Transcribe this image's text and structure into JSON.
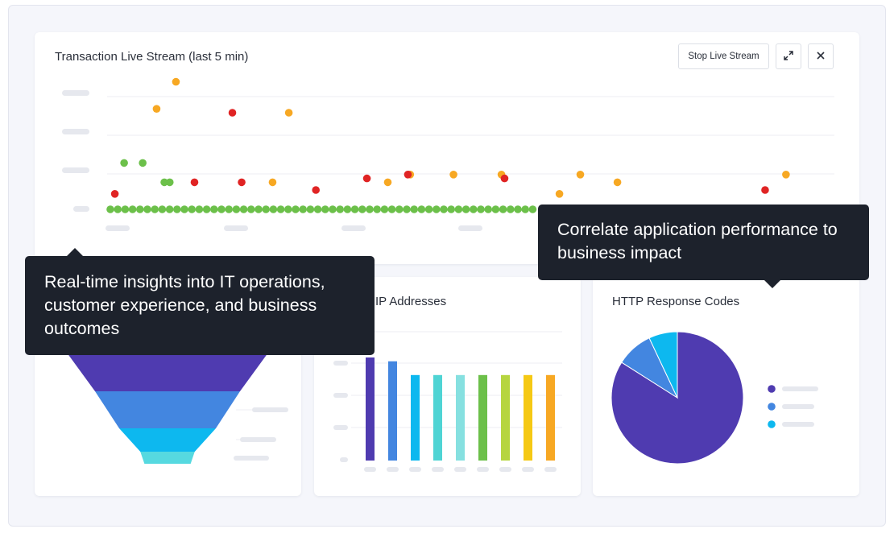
{
  "stream_card": {
    "title": "Transaction Live Stream (last 5 min)",
    "stop_label": "Stop Live Stream",
    "expand_icon": "expand-icon",
    "close_icon": "close-icon",
    "colors": {
      "ok": "#6cc04a",
      "warn": "#f7a823",
      "error": "#e02424"
    }
  },
  "ip_card": {
    "title": "IP Addresses"
  },
  "http_card": {
    "title": "HTTP Response Codes",
    "legend_colors": [
      "#4f3bb0",
      "#4386e0",
      "#0db8ef"
    ]
  },
  "tooltips": {
    "left": "Real-time insights into IT operations, customer experience, and business outcomes",
    "right": "Correlate application performance to business impact"
  },
  "chart_data": [
    {
      "type": "scatter",
      "title": "Transaction Live Stream (last 5 min)",
      "xlim": [
        0,
        100
      ],
      "ylim": [
        0,
        4
      ],
      "series": [
        {
          "color": "#6cc04a",
          "points": [
            [
              2.2,
              1.2
            ],
            [
              4.6,
              1.2
            ],
            [
              7.4,
              0.7
            ],
            [
              8.1,
              0.7
            ]
          ]
        },
        {
          "color": "#f7a823",
          "points": [
            [
              8.9,
              3.3
            ],
            [
              6.4,
              2.6
            ],
            [
              23.5,
              2.5
            ],
            [
              21.4,
              0.7
            ],
            [
              36.3,
              0.7
            ],
            [
              39.2,
              0.9
            ],
            [
              44.8,
              0.9
            ],
            [
              51.0,
              0.9
            ],
            [
              58.5,
              0.4
            ],
            [
              61.2,
              0.9
            ],
            [
              66.0,
              0.7
            ],
            [
              87.8,
              0.9
            ]
          ]
        },
        {
          "color": "#e02424",
          "points": [
            [
              1.0,
              0.4
            ],
            [
              16.2,
              2.5
            ],
            [
              11.3,
              0.7
            ],
            [
              17.4,
              0.7
            ],
            [
              27.0,
              0.5
            ],
            [
              33.6,
              0.8
            ],
            [
              38.9,
              0.9
            ],
            [
              51.4,
              0.8
            ],
            [
              85.1,
              0.5
            ]
          ]
        }
      ],
      "baseline": {
        "color": "#6cc04a",
        "count": 58
      }
    },
    {
      "type": "bar",
      "title": "IP Addresses",
      "values": [
        135,
        130,
        112,
        112,
        112,
        112,
        112,
        112,
        112
      ],
      "colors": [
        "#4f3bb0",
        "#4386e0",
        "#0db8ef",
        "#4fd4d4",
        "#86e0e0",
        "#6cc04a",
        "#b6d540",
        "#f5c914",
        "#f7a823"
      ]
    },
    {
      "type": "pie",
      "title": "HTTP Response Codes",
      "values": [
        84,
        9,
        7
      ],
      "colors": [
        "#4f3bb0",
        "#4386e0",
        "#0db8ef"
      ]
    },
    {
      "type": "funnel",
      "values": [
        100,
        72,
        48,
        27
      ],
      "colors": [
        "#4f3bb0",
        "#4386e0",
        "#0db8ef",
        "#56d9e0"
      ]
    }
  ]
}
